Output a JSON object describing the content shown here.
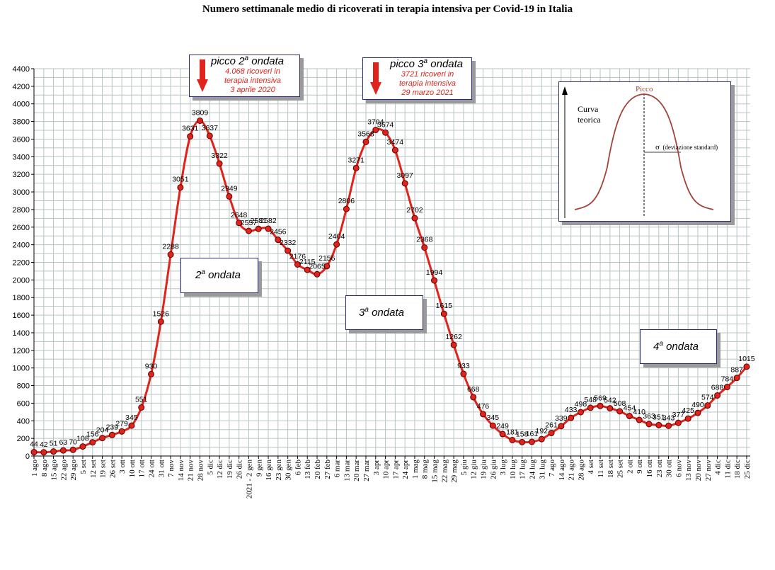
{
  "chart_data": {
    "type": "line",
    "title": "Numero settimanale medio di ricoverati in terapia intensiva per Covid-19 in Italia",
    "xlabel": "",
    "ylabel": "",
    "ylim": [
      0,
      4400
    ],
    "yticks": [
      0,
      200,
      400,
      600,
      800,
      1000,
      1200,
      1400,
      1600,
      1800,
      2000,
      2200,
      2400,
      2600,
      2800,
      3000,
      3200,
      3400,
      3600,
      3800,
      4000,
      4200,
      4400
    ],
    "grid": true,
    "categories": [
      "1 ago",
      "8 ago",
      "15 ago",
      "22 ago",
      "29 ago",
      "5 set",
      "12 set",
      "19 set",
      "26 set",
      "3 ott",
      "10 ott",
      "17 ott",
      "24 ott",
      "31 ott",
      "7 nov",
      "14 nov",
      "21 nov",
      "28 nov",
      "5 dic",
      "12 dic",
      "19 dic",
      "26 dic",
      "2021 - 2 gen",
      "9 gen",
      "16 gen",
      "23 gen",
      "30 gen",
      "6 feb",
      "13 feb",
      "20 feb",
      "27 feb",
      "6 mar",
      "13 mar",
      "20 mar",
      "27 mar",
      "3 apr",
      "10 apr",
      "17 apr",
      "24 apr",
      "1 mag",
      "8 mag",
      "15 mag",
      "22 mag",
      "29 mag",
      "5 giu",
      "12 giu",
      "19 giu",
      "26 giu",
      "3 lug",
      "10 lug",
      "17 lug",
      "24 lug",
      "31 lug",
      "7 ago",
      "14 ago",
      "21 ago",
      "28 ago",
      "4 set",
      "11 set",
      "18 set",
      "25 set",
      "2 ott",
      "9 ott",
      "16 ott",
      "23 ott",
      "30 ott",
      "6 nov",
      "13 nov",
      "20 nov",
      "27 nov",
      "4 dic",
      "11 dic",
      "18 dic",
      "25 dic"
    ],
    "points": [
      {
        "i": 0,
        "v": 44,
        "label": "44"
      },
      {
        "i": 1,
        "v": 42,
        "label": "42"
      },
      {
        "i": 2,
        "v": 51,
        "label": "51"
      },
      {
        "i": 3,
        "v": 63,
        "label": "63"
      },
      {
        "i": 4,
        "v": 70,
        "label": "70"
      },
      {
        "i": 5,
        "v": 108,
        "label": "108"
      },
      {
        "i": 6,
        "v": 156,
        "label": "156"
      },
      {
        "i": 7,
        "v": 204,
        "label": "204"
      },
      {
        "i": 8,
        "v": 239,
        "label": "239"
      },
      {
        "i": 9,
        "v": 279,
        "label": "279"
      },
      {
        "i": 10,
        "v": 345,
        "label": "345"
      },
      {
        "i": 11,
        "v": 551,
        "label": "551"
      },
      {
        "i": 12,
        "v": 930,
        "label": "930"
      },
      {
        "i": 13,
        "v": 1526,
        "label": "1526"
      },
      {
        "i": 14,
        "v": 2288,
        "label": "2288"
      },
      {
        "i": 15,
        "v": 3051,
        "label": "3051"
      },
      {
        "i": 16,
        "v": 3631,
        "label": "3631"
      },
      {
        "i": 17,
        "v": 3809,
        "label": "3809"
      },
      {
        "i": 18,
        "v": 3637,
        "label": "3637"
      },
      {
        "i": 19,
        "v": 3322,
        "label": "3322"
      },
      {
        "i": 20,
        "v": 2949,
        "label": "2949"
      },
      {
        "i": 21,
        "v": 2648,
        "label": "2648"
      },
      {
        "i": 22,
        "v": 2557,
        "label": "2557"
      },
      {
        "i": 23,
        "v": 2581,
        "label": "2581"
      },
      {
        "i": 24,
        "v": 2582,
        "label": "2582"
      },
      {
        "i": 25,
        "v": 2456,
        "label": "2456"
      },
      {
        "i": 26,
        "v": 2332,
        "label": "2332"
      },
      {
        "i": 27,
        "v": 2176,
        "label": "2176"
      },
      {
        "i": 28,
        "v": 2115,
        "label": "2115"
      },
      {
        "i": 29,
        "v": 2065,
        "label": "2065"
      },
      {
        "i": 30,
        "v": 2156,
        "label": "2156"
      },
      {
        "i": 31,
        "v": 2404,
        "label": "2404"
      },
      {
        "i": 32,
        "v": 2806,
        "label": "2806"
      },
      {
        "i": 33,
        "v": 3271,
        "label": "3271"
      },
      {
        "i": 34,
        "v": 3568,
        "label": "3568"
      },
      {
        "i": 35,
        "v": 3704,
        "label": "3704"
      },
      {
        "i": 36,
        "v": 3674,
        "label": "3674"
      },
      {
        "i": 37,
        "v": 3474,
        "label": "3474"
      },
      {
        "i": 38,
        "v": 3097,
        "label": "3097"
      },
      {
        "i": 39,
        "v": 2702,
        "label": "2702"
      },
      {
        "i": 40,
        "v": 2368,
        "label": "2368"
      },
      {
        "i": 41,
        "v": 1994,
        "label": "1994"
      },
      {
        "i": 42,
        "v": 1615,
        "label": "1615"
      },
      {
        "i": 43,
        "v": 1262,
        "label": "1262"
      },
      {
        "i": 44,
        "v": 933,
        "label": "933"
      },
      {
        "i": 45,
        "v": 668,
        "label": "668"
      },
      {
        "i": 46,
        "v": 476,
        "label": "476"
      },
      {
        "i": 47,
        "v": 345,
        "label": "345"
      },
      {
        "i": 48,
        "v": 249,
        "label": "249"
      },
      {
        "i": 49,
        "v": 181,
        "label": "181"
      },
      {
        "i": 50,
        "v": 158,
        "label": "158"
      },
      {
        "i": 51,
        "v": 161,
        "label": "161"
      },
      {
        "i": 52,
        "v": 192,
        "label": "192"
      },
      {
        "i": 53,
        "v": 261,
        "label": "261"
      },
      {
        "i": 54,
        "v": 339,
        "label": "339"
      },
      {
        "i": 55,
        "v": 433,
        "label": "433"
      },
      {
        "i": 56,
        "v": 498,
        "label": "498"
      },
      {
        "i": 57,
        "v": 548,
        "label": "548"
      },
      {
        "i": 58,
        "v": 569,
        "label": "569"
      },
      {
        "i": 59,
        "v": 542,
        "label": "542"
      },
      {
        "i": 60,
        "v": 508,
        "label": "508"
      },
      {
        "i": 61,
        "v": 454,
        "label": "454"
      },
      {
        "i": 62,
        "v": 410,
        "label": "410"
      },
      {
        "i": 63,
        "v": 363,
        "label": "363"
      },
      {
        "i": 64,
        "v": 351,
        "label": "351"
      },
      {
        "i": 65,
        "v": 343,
        "label": "343"
      },
      {
        "i": 66,
        "v": 377,
        "label": "377"
      },
      {
        "i": 67,
        "v": 425,
        "label": "425"
      },
      {
        "i": 68,
        "v": 490,
        "label": "490"
      },
      {
        "i": 69,
        "v": 574,
        "label": "574"
      },
      {
        "i": 70,
        "v": 688,
        "label": "688"
      },
      {
        "i": 71,
        "v": 784,
        "label": "784"
      },
      {
        "i": 72,
        "v": 887,
        "label": "887"
      },
      {
        "i": 73,
        "v": 1015,
        "label": "1015"
      }
    ],
    "colors": {
      "line": "#e0241c",
      "marker_fill": "#e0241c",
      "marker_stroke": "#5a0000",
      "grid": "#b8c4c4",
      "arrow": "#e0241c",
      "annotation_text": "#e0241c",
      "inset_curve": "#a0443c"
    }
  },
  "annotations": {
    "peak2": {
      "title_prefix": "picco 2",
      "title_sup": "a",
      "title_suffix": " ondata",
      "line1": "4.068 ricoveri in",
      "line2": "terapia intensiva",
      "line3": "3 aprile 2020"
    },
    "peak3": {
      "title_prefix": "picco 3",
      "title_sup": "a",
      "title_suffix": " ondata",
      "line1": "3721 ricoveri in",
      "line2": "terapia intensiva",
      "line3": "29 marzo 2021"
    },
    "wave2": {
      "num": "2",
      "sup": "a",
      "text": " ondata"
    },
    "wave3": {
      "num": "3",
      "sup": "a",
      "text": " ondata"
    },
    "wave4": {
      "num": "4",
      "sup": "a",
      "text": " ondata"
    }
  },
  "inset": {
    "peak_label": "Picco",
    "curve_label_1": "Curva",
    "curve_label_2": "teorica",
    "sigma_symbol": "σ",
    "sigma_label": "(deviazione standard)"
  }
}
